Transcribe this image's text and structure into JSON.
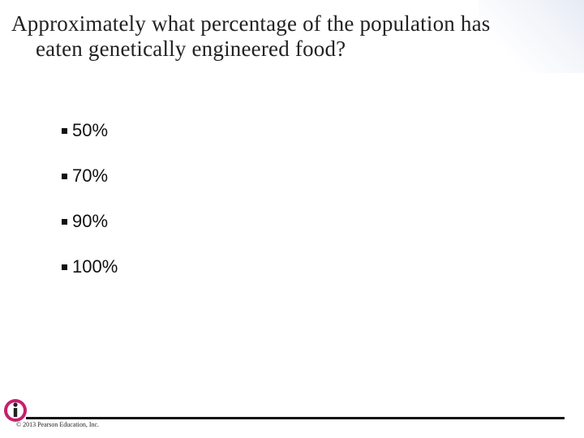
{
  "slide": {
    "title_line1": "Approximately what percentage of the population has",
    "title_line2": "eaten genetically engineered food?",
    "options": [
      "50%",
      "70%",
      "90%",
      "100%"
    ]
  },
  "footer": {
    "copyright": "© 2013 Pearson Education, Inc."
  },
  "colors": {
    "logo_pink": "#c81e6e",
    "text": "#222222"
  },
  "icons": {
    "logo": "info-i-logo"
  }
}
